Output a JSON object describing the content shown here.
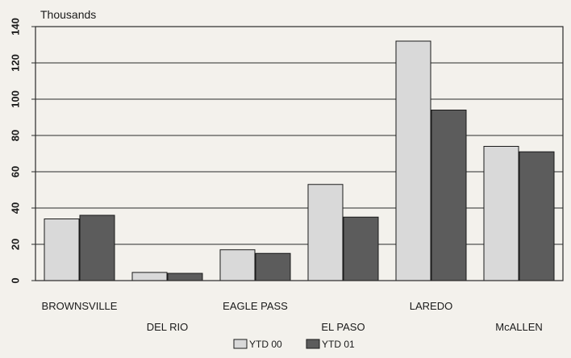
{
  "chart_data": {
    "type": "bar",
    "unit_label": "Thousands",
    "categories": [
      "BROWNSVILLE",
      "DEL RIO",
      "EAGLE PASS",
      "EL PASO",
      "LAREDO",
      "McALLEN"
    ],
    "series": [
      {
        "name": "YTD 00",
        "color": "#d9d9d9",
        "values": [
          34,
          4.5,
          17,
          53,
          132,
          74
        ]
      },
      {
        "name": "YTD 01",
        "color": "#5c5c5c",
        "values": [
          36,
          4,
          15,
          35,
          94,
          71
        ]
      }
    ],
    "ylim": [
      0,
      140
    ],
    "yticks": [
      0,
      20,
      40,
      60,
      80,
      100,
      120,
      140
    ],
    "grid": true,
    "legend_position": "bottom-center"
  }
}
